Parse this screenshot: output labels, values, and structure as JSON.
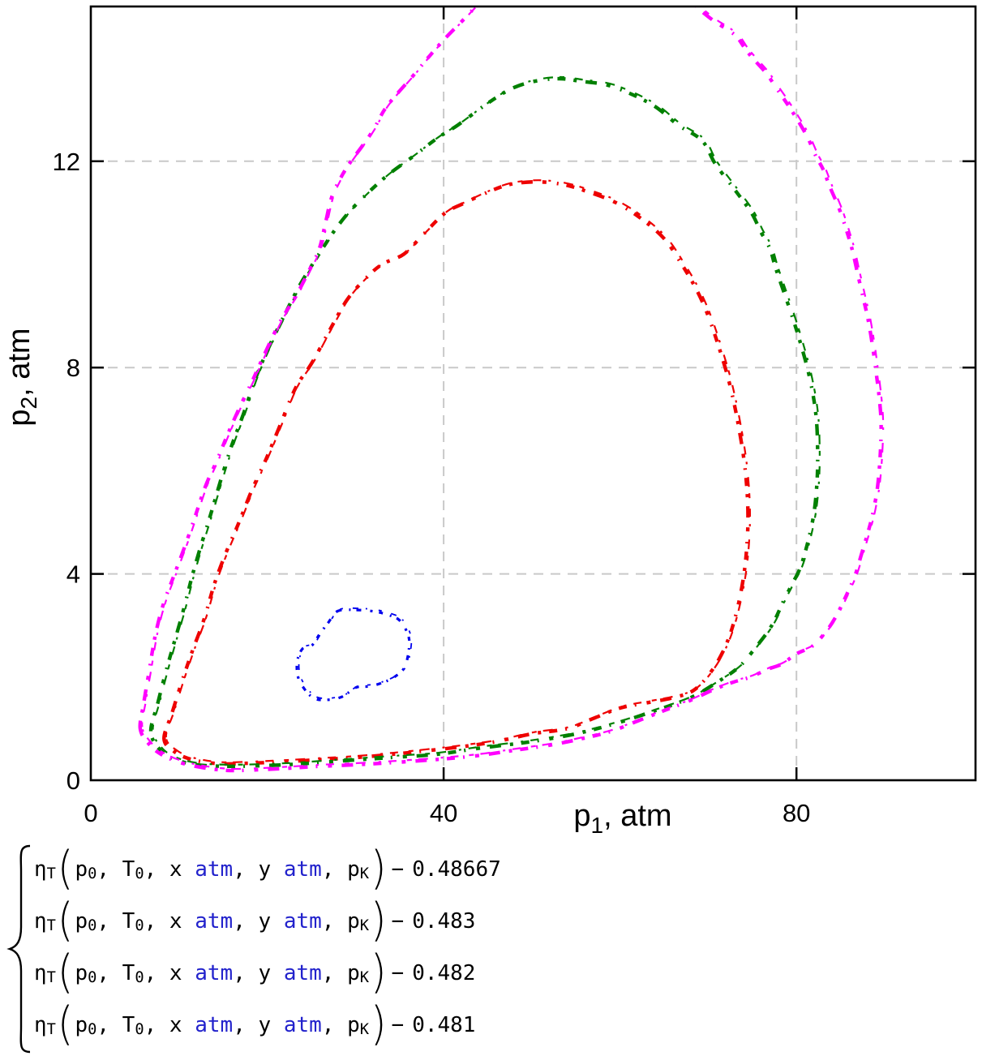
{
  "chart_data": {
    "type": "line",
    "subtype": "implicit-contour-traces",
    "title": "",
    "xlabel": {
      "base": "p",
      "sub": "1",
      "unit": ", atm"
    },
    "ylabel": {
      "base": "p",
      "sub": "2",
      "unit": ", atm"
    },
    "xlim": [
      0,
      100.3
    ],
    "ylim": [
      0,
      15
    ],
    "grid": true,
    "grid_color": "#c9c9c9",
    "xticks": [
      {
        "v": 0,
        "label": "0"
      },
      {
        "v": 40,
        "label": "40"
      },
      {
        "v": 80,
        "label": "80"
      }
    ],
    "yticks": [
      {
        "v": 0,
        "label": "0"
      },
      {
        "v": 4,
        "label": "4"
      },
      {
        "v": 8,
        "label": "8"
      },
      {
        "v": 12,
        "label": "12"
      }
    ],
    "series": [
      {
        "name": "eta_T level 0.48667",
        "level": 0.48667,
        "color": "#0000ee",
        "points": [
          [
            28.0,
            3.28
          ],
          [
            30.2,
            3.3
          ],
          [
            32.2,
            3.27
          ],
          [
            33.8,
            3.2
          ],
          [
            35.0,
            3.1
          ],
          [
            35.9,
            2.85
          ],
          [
            36.1,
            2.6
          ],
          [
            35.6,
            2.2
          ],
          [
            34.4,
            2.0
          ],
          [
            32.9,
            1.88
          ],
          [
            31.5,
            1.82
          ],
          [
            30.1,
            1.8
          ],
          [
            28.5,
            1.62
          ],
          [
            26.9,
            1.56
          ],
          [
            25.4,
            1.58
          ],
          [
            24.3,
            1.75
          ],
          [
            23.5,
            2.0
          ],
          [
            23.4,
            2.3
          ],
          [
            24.0,
            2.55
          ],
          [
            25.1,
            2.62
          ],
          [
            26.0,
            2.85
          ],
          [
            26.9,
            3.05
          ]
        ]
      },
      {
        "name": "eta_T level 0.483",
        "level": 0.483,
        "color": "#ee0000",
        "points": [
          [
            8.3,
            0.8
          ],
          [
            9.2,
            1.3
          ],
          [
            10.3,
            1.9
          ],
          [
            11.5,
            2.5
          ],
          [
            12.8,
            3.1
          ],
          [
            14.0,
            3.8
          ],
          [
            15.3,
            4.4
          ],
          [
            16.8,
            5.0
          ],
          [
            18.2,
            5.6
          ],
          [
            19.8,
            6.2
          ],
          [
            21.5,
            6.9
          ],
          [
            23.2,
            7.6
          ],
          [
            25.1,
            8.1
          ],
          [
            27.0,
            8.7
          ],
          [
            29.0,
            9.3
          ],
          [
            31.0,
            9.7
          ],
          [
            33.0,
            10.0
          ],
          [
            35.5,
            10.2
          ],
          [
            37.8,
            10.6
          ],
          [
            40.2,
            11.0
          ],
          [
            42.5,
            11.2
          ],
          [
            45.0,
            11.4
          ],
          [
            47.5,
            11.55
          ],
          [
            50.5,
            11.6
          ],
          [
            53.5,
            11.55
          ],
          [
            56.5,
            11.4
          ],
          [
            59.5,
            11.2
          ],
          [
            62.3,
            10.9
          ],
          [
            65.0,
            10.5
          ],
          [
            67.0,
            10.0
          ],
          [
            68.7,
            9.5
          ],
          [
            70.0,
            9.0
          ],
          [
            71.2,
            8.4
          ],
          [
            72.4,
            7.7
          ],
          [
            73.4,
            6.9
          ],
          [
            74.2,
            6.0
          ],
          [
            74.5,
            5.1
          ],
          [
            74.2,
            4.2
          ],
          [
            73.4,
            3.4
          ],
          [
            72.2,
            2.7
          ],
          [
            70.5,
            2.15
          ],
          [
            68.4,
            1.75
          ],
          [
            66.0,
            1.6
          ],
          [
            63.0,
            1.5
          ],
          [
            60.0,
            1.4
          ],
          [
            57.0,
            1.2
          ],
          [
            54.0,
            1.0
          ],
          [
            50.0,
            0.9
          ],
          [
            46.0,
            0.75
          ],
          [
            42.0,
            0.65
          ],
          [
            38.0,
            0.57
          ],
          [
            34.0,
            0.5
          ],
          [
            30.0,
            0.44
          ],
          [
            26.0,
            0.4
          ],
          [
            22.0,
            0.36
          ],
          [
            18.0,
            0.33
          ],
          [
            14.5,
            0.32
          ],
          [
            11.5,
            0.4
          ],
          [
            9.5,
            0.55
          ]
        ]
      },
      {
        "name": "eta_T level 0.482",
        "level": 0.482,
        "color": "#008000",
        "points": [
          [
            6.8,
            0.95
          ],
          [
            7.6,
            1.5
          ],
          [
            8.5,
            2.1
          ],
          [
            9.5,
            2.7
          ],
          [
            10.5,
            3.3
          ],
          [
            11.4,
            3.9
          ],
          [
            12.4,
            4.5
          ],
          [
            13.5,
            5.1
          ],
          [
            14.7,
            5.8
          ],
          [
            16.0,
            6.5
          ],
          [
            17.3,
            7.1
          ],
          [
            18.7,
            7.8
          ],
          [
            20.2,
            8.4
          ],
          [
            21.9,
            9.0
          ],
          [
            23.7,
            9.6
          ],
          [
            25.5,
            10.1
          ],
          [
            27.4,
            10.6
          ],
          [
            29.2,
            11.0
          ],
          [
            31.5,
            11.4
          ],
          [
            33.8,
            11.75
          ],
          [
            36.6,
            12.1
          ],
          [
            39.3,
            12.45
          ],
          [
            41.6,
            12.7
          ],
          [
            44.8,
            13.1
          ],
          [
            47.6,
            13.4
          ],
          [
            50.3,
            13.55
          ],
          [
            53.1,
            13.6
          ],
          [
            55.5,
            13.55
          ],
          [
            59.1,
            13.45
          ],
          [
            63.6,
            13.1
          ],
          [
            66.6,
            12.7
          ],
          [
            69.3,
            12.4
          ],
          [
            70.8,
            11.95
          ],
          [
            73.0,
            11.45
          ],
          [
            74.9,
            11.0
          ],
          [
            75.9,
            10.65
          ],
          [
            77.0,
            10.3
          ],
          [
            77.7,
            9.9
          ],
          [
            79.4,
            9.05
          ],
          [
            80.5,
            8.45
          ],
          [
            81.5,
            7.8
          ],
          [
            82.2,
            7.1
          ],
          [
            82.4,
            6.4
          ],
          [
            82.3,
            5.7
          ],
          [
            81.8,
            5.0
          ],
          [
            80.6,
            4.2
          ],
          [
            79.5,
            3.8
          ],
          [
            78.6,
            3.5
          ],
          [
            77.2,
            3.0
          ],
          [
            75.5,
            2.6
          ],
          [
            73.5,
            2.2
          ],
          [
            71.0,
            1.9
          ],
          [
            68.0,
            1.6
          ],
          [
            64.0,
            1.35
          ],
          [
            59.5,
            1.1
          ],
          [
            55.0,
            0.9
          ],
          [
            50.0,
            0.75
          ],
          [
            44.0,
            0.62
          ],
          [
            39.1,
            0.5
          ],
          [
            34.0,
            0.44
          ],
          [
            28.0,
            0.37
          ],
          [
            22.0,
            0.3
          ],
          [
            16.0,
            0.27
          ],
          [
            12.0,
            0.3
          ],
          [
            9.3,
            0.42
          ],
          [
            7.7,
            0.62
          ]
        ]
      },
      {
        "name": "eta_T level 0.481",
        "level": 0.481,
        "color": "#ff00ff",
        "points": [
          [
            5.6,
            1.0
          ],
          [
            6.0,
            1.5
          ],
          [
            6.6,
            2.1
          ],
          [
            7.3,
            2.8
          ],
          [
            8.2,
            3.4
          ],
          [
            9.5,
            4.0
          ],
          [
            10.8,
            4.6
          ],
          [
            11.8,
            5.1
          ],
          [
            13.0,
            5.7
          ],
          [
            14.3,
            6.2
          ],
          [
            15.5,
            6.7
          ],
          [
            16.8,
            7.2
          ],
          [
            18.2,
            7.7
          ],
          [
            19.8,
            8.3
          ],
          [
            21.5,
            8.9
          ],
          [
            23.3,
            9.4
          ],
          [
            24.8,
            9.9
          ],
          [
            25.9,
            10.3
          ],
          [
            26.6,
            10.8
          ],
          [
            27.3,
            11.3
          ],
          [
            28.4,
            11.7
          ],
          [
            29.5,
            12.0
          ],
          [
            30.8,
            12.3
          ],
          [
            32.0,
            12.6
          ],
          [
            33.3,
            13.0
          ],
          [
            34.7,
            13.3
          ],
          [
            36.5,
            13.65
          ],
          [
            38.2,
            14.0
          ],
          [
            40.0,
            14.35
          ],
          [
            42.0,
            14.7
          ],
          [
            44.0,
            15.05
          ],
          [
            46.5,
            15.4
          ],
          [
            49.5,
            15.7
          ],
          [
            53.0,
            15.85
          ],
          [
            57.0,
            15.85
          ],
          [
            60.5,
            15.7
          ],
          [
            63.5,
            15.5
          ],
          [
            66.0,
            15.3
          ],
          [
            68.0,
            15.1
          ],
          [
            69.3,
            14.9
          ],
          [
            70.8,
            14.7
          ],
          [
            72.2,
            14.55
          ],
          [
            73.3,
            14.4
          ],
          [
            74.3,
            14.15
          ],
          [
            75.3,
            13.95
          ],
          [
            76.6,
            13.7
          ],
          [
            77.8,
            13.4
          ],
          [
            79.0,
            13.1
          ],
          [
            80.3,
            12.75
          ],
          [
            81.3,
            12.45
          ],
          [
            82.2,
            12.1
          ],
          [
            83.0,
            11.85
          ],
          [
            83.8,
            11.5
          ],
          [
            84.8,
            11.1
          ],
          [
            85.6,
            10.7
          ],
          [
            86.3,
            10.3
          ],
          [
            86.9,
            9.85
          ],
          [
            87.5,
            9.4
          ],
          [
            88.1,
            8.95
          ],
          [
            88.6,
            8.45
          ],
          [
            89.0,
            7.95
          ],
          [
            89.4,
            7.4
          ],
          [
            89.6,
            6.9
          ],
          [
            89.5,
            6.3
          ],
          [
            89.2,
            5.7
          ],
          [
            88.7,
            5.2
          ],
          [
            88.1,
            4.8
          ],
          [
            87.4,
            4.4
          ],
          [
            86.7,
            4.0
          ],
          [
            85.7,
            3.6
          ],
          [
            84.4,
            3.15
          ],
          [
            83.2,
            2.85
          ],
          [
            81.8,
            2.6
          ],
          [
            80.0,
            2.45
          ],
          [
            78.3,
            2.25
          ],
          [
            76.7,
            2.15
          ],
          [
            74.8,
            2.0
          ],
          [
            72.8,
            1.9
          ],
          [
            70.5,
            1.75
          ],
          [
            68.0,
            1.55
          ],
          [
            65.0,
            1.35
          ],
          [
            62.0,
            1.15
          ],
          [
            59.0,
            0.95
          ],
          [
            55.5,
            0.8
          ],
          [
            52.0,
            0.68
          ],
          [
            48.0,
            0.58
          ],
          [
            44.0,
            0.48
          ],
          [
            40.5,
            0.42
          ],
          [
            37.5,
            0.38
          ],
          [
            34.0,
            0.34
          ],
          [
            30.0,
            0.3
          ],
          [
            26.0,
            0.27
          ],
          [
            22.0,
            0.23
          ],
          [
            18.5,
            0.2
          ],
          [
            15.5,
            0.19
          ],
          [
            12.5,
            0.25
          ],
          [
            10.0,
            0.35
          ],
          [
            8.0,
            0.5
          ],
          [
            6.6,
            0.7
          ]
        ]
      }
    ]
  },
  "legend": {
    "minus": "−",
    "unit_color": "#2222cc",
    "tokens": [
      {
        "t": "η",
        "sub": "T"
      },
      {
        "t": "(",
        "paren": true
      },
      {
        "t": "p",
        "sub": "0"
      },
      {
        "t": ", "
      },
      {
        "t": "T",
        "sub": "0"
      },
      {
        "t": ", "
      },
      {
        "t": "x "
      },
      {
        "t": "atm",
        "unit": true
      },
      {
        "t": ", "
      },
      {
        "t": "y "
      },
      {
        "t": "atm",
        "unit": true
      },
      {
        "t": ", "
      },
      {
        "t": "p",
        "sub": "K"
      },
      {
        "t": ")",
        "paren": true
      }
    ],
    "rows": [
      {
        "value": "0.48667"
      },
      {
        "value": "0.483"
      },
      {
        "value": "0.482"
      },
      {
        "value": "0.481"
      }
    ]
  }
}
